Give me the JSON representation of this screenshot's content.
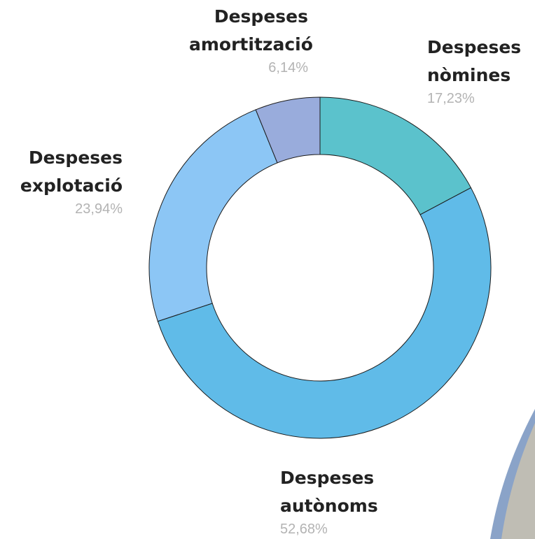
{
  "chart_data": {
    "type": "donut",
    "categories": [
      "Despeses nòmines",
      "Despeses autònoms",
      "Despeses explotació",
      "Despeses amortització"
    ],
    "values": [
      17.23,
      52.68,
      23.94,
      6.14
    ],
    "value_labels": [
      "17,23%",
      "52,68%",
      "23,94%",
      "6,14%"
    ],
    "colors": [
      "#5bc2cc",
      "#60bbe8",
      "#8cc6f5",
      "#99acdc"
    ]
  }
}
